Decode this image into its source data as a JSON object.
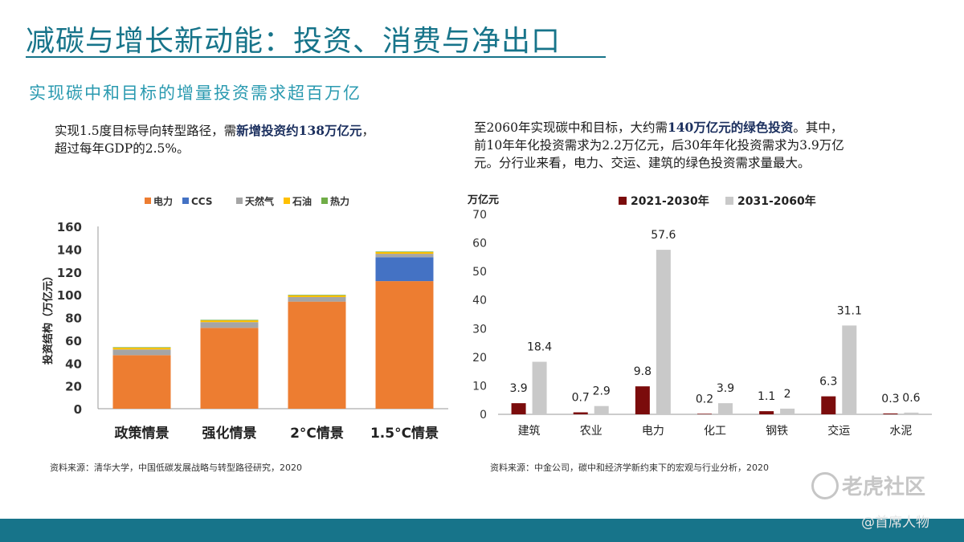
{
  "slide": {
    "title": "减碳与增长新动能：投资、消费与净出口",
    "subtitle": "实现碳中和目标的增量投资需求超百万亿"
  },
  "left_text": {
    "part1": "实现1.5度目标导向转型路径，需",
    "bold": "新增投资约138万亿元",
    "part2": "，",
    "line2": "超过每年GDP的2.5%。"
  },
  "right_text": {
    "part1": "至2060年实现碳中和目标，大约需",
    "bold": "140万亿元的绿色投资",
    "part2": "。其中，",
    "line2": "前10年年化投资需求为2.2万亿元，后30年年化投资需求为3.9万亿",
    "line3": "元。分行业来看，电力、交运、建筑的绿色投资需求量最大。"
  },
  "sources": {
    "left": "资料来源：清华大学，中国低碳发展战略与转型路径研究，2020",
    "right": "资料来源：中金公司，碳中和经济学新约束下的宏观与行业分析，2020"
  },
  "watermark": {
    "brand": "老虎社区",
    "handle": "@首席人物"
  },
  "colors": {
    "accent": "#17748a",
    "电力": "#ed7d31",
    "CCS": "#4472c4",
    "天然气": "#a5a5a5",
    "石油": "#ffc000",
    "热力": "#70ad47",
    "dark_series": "#7b0c0c",
    "light_series": "#c9c9c9"
  },
  "chart_data": [
    {
      "type": "bar",
      "stacked": true,
      "categories": [
        "政策情景",
        "强化情景",
        "2°C情景",
        "1.5°C情景"
      ],
      "series": [
        {
          "name": "电力",
          "values": [
            47,
            71,
            94,
            112
          ]
        },
        {
          "name": "CCS",
          "values": [
            0,
            0,
            0,
            21
          ]
        },
        {
          "name": "天然气",
          "values": [
            5,
            5,
            4,
            3
          ]
        },
        {
          "name": "石油",
          "values": [
            1.5,
            1.5,
            1.5,
            1.5
          ]
        },
        {
          "name": "热力",
          "values": [
            0.5,
            0.5,
            0.5,
            0.5
          ]
        }
      ],
      "ylabel": "投资结构（万亿元）",
      "ylim": [
        0,
        160
      ],
      "yticks": [
        0,
        20,
        40,
        60,
        80,
        100,
        120,
        140,
        160
      ],
      "legend": "top",
      "grid": false
    },
    {
      "type": "bar",
      "categories": [
        "建筑",
        "农业",
        "电力",
        "化工",
        "钢铁",
        "交运",
        "水泥"
      ],
      "series": [
        {
          "name": "2021-2030年",
          "values": [
            3.9,
            0.7,
            9.8,
            0.2,
            1.1,
            6.3,
            0.3
          ]
        },
        {
          "name": "2031-2060年",
          "values": [
            18.4,
            2.9,
            57.6,
            3.9,
            2.0,
            31.1,
            0.6
          ]
        }
      ],
      "unit": "万亿元",
      "ylim": [
        0,
        70
      ],
      "yticks": [
        0,
        10,
        20,
        30,
        40,
        50,
        60,
        70
      ],
      "data_labels": true,
      "legend": "top",
      "grid": false
    }
  ]
}
